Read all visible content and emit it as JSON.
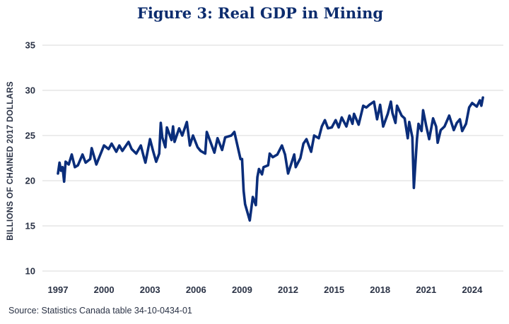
{
  "chart_data": {
    "type": "line",
    "title": "Figure 3: Real GDP in Mining",
    "xlabel": "",
    "ylabel": "BILLIONS OF CHAINED 2017 DOLLARS",
    "ylim": [
      10,
      35
    ],
    "yticks": [
      "35",
      "30",
      "25",
      "20",
      "15",
      "10"
    ],
    "xticks": [
      "1997",
      "2000",
      "2003",
      "2006",
      "2009",
      "2012",
      "2015",
      "2018",
      "2021",
      "2024"
    ],
    "grid": "horizontal",
    "line_color": "#0a2d7a",
    "source": "Source: Statistics Canada table 34-10-0434-01",
    "x": [
      1997.0,
      1997.1,
      1997.2,
      1997.3,
      1997.4,
      1997.5,
      1997.7,
      1997.9,
      1998.1,
      1998.3,
      1998.6,
      1998.8,
      1999.1,
      1999.2,
      1999.5,
      2000.0,
      2000.3,
      2000.5,
      2000.8,
      2001.0,
      2001.2,
      2001.6,
      2001.8,
      2002.1,
      2002.4,
      2002.6,
      2002.7,
      2003.0,
      2003.2,
      2003.4,
      2003.6,
      2003.7,
      2003.8,
      2004.0,
      2004.1,
      2004.4,
      2004.5,
      2004.6,
      2004.9,
      2005.1,
      2005.4,
      2005.6,
      2005.8,
      2006.1,
      2006.3,
      2006.6,
      2006.7,
      2007.2,
      2007.4,
      2007.7,
      2007.9,
      2008.3,
      2008.5,
      2008.9,
      2009.0,
      2009.1,
      2009.2,
      2009.5,
      2009.7,
      2009.9,
      2010.0,
      2010.1,
      2010.3,
      2010.4,
      2010.7,
      2010.8,
      2011.0,
      2011.3,
      2011.6,
      2011.8,
      2012.0,
      2012.4,
      2012.5,
      2012.8,
      2013.0,
      2013.2,
      2013.5,
      2013.7,
      2014.0,
      2014.2,
      2014.4,
      2014.6,
      2014.85,
      2015.1,
      2015.3,
      2015.5,
      2015.8,
      2016.0,
      2016.2,
      2016.3,
      2016.6,
      2016.9,
      2017.1,
      2017.3,
      2017.6,
      2017.8,
      2018.0,
      2018.2,
      2018.5,
      2018.7,
      2018.8,
      2019.0,
      2019.1,
      2019.4,
      2019.6,
      2019.8,
      2019.9,
      2020.1,
      2020.2,
      2020.4,
      2020.5,
      2020.7,
      2020.8,
      2021.0,
      2021.2,
      2021.45,
      2021.65,
      2021.75,
      2021.95,
      2022.2,
      2022.5,
      2022.8,
      2023.0,
      2023.2,
      2023.35,
      2023.6,
      2023.8,
      2024.0,
      2024.3,
      2024.5,
      2024.6,
      2024.7
    ],
    "values": [
      20.8,
      22.0,
      21.1,
      21.5,
      19.9,
      22.1,
      21.8,
      22.9,
      21.5,
      21.7,
      22.9,
      22.0,
      22.4,
      23.6,
      21.8,
      23.9,
      23.5,
      24.1,
      23.2,
      23.9,
      23.3,
      24.3,
      23.5,
      23.0,
      23.9,
      22.6,
      22.0,
      24.6,
      23.3,
      22.1,
      23.0,
      26.4,
      24.8,
      23.7,
      25.9,
      24.5,
      26.0,
      24.3,
      25.8,
      25.0,
      26.5,
      23.9,
      25.0,
      23.7,
      23.3,
      23.0,
      25.4,
      23.1,
      24.7,
      23.4,
      24.8,
      25.0,
      25.4,
      22.4,
      22.4,
      18.9,
      17.4,
      15.6,
      18.2,
      17.3,
      20.4,
      21.3,
      20.7,
      21.5,
      21.7,
      23.0,
      22.6,
      22.9,
      23.9,
      22.9,
      20.8,
      22.9,
      21.5,
      22.5,
      24.1,
      24.6,
      23.2,
      25.0,
      24.7,
      26.0,
      26.7,
      25.8,
      25.9,
      26.7,
      25.9,
      27.0,
      26.0,
      27.2,
      26.3,
      27.4,
      26.2,
      28.3,
      28.1,
      28.4,
      28.75,
      26.8,
      28.4,
      26.0,
      27.4,
      28.75,
      27.5,
      26.4,
      28.3,
      27.2,
      26.9,
      24.7,
      26.5,
      24.8,
      19.2,
      24.6,
      26.3,
      25.5,
      27.8,
      26.1,
      24.6,
      26.9,
      26.0,
      24.2,
      25.6,
      26.0,
      27.2,
      25.6,
      26.4,
      26.8,
      25.5,
      26.3,
      28.1,
      28.6,
      28.2,
      28.9,
      28.3,
      29.2
    ]
  }
}
